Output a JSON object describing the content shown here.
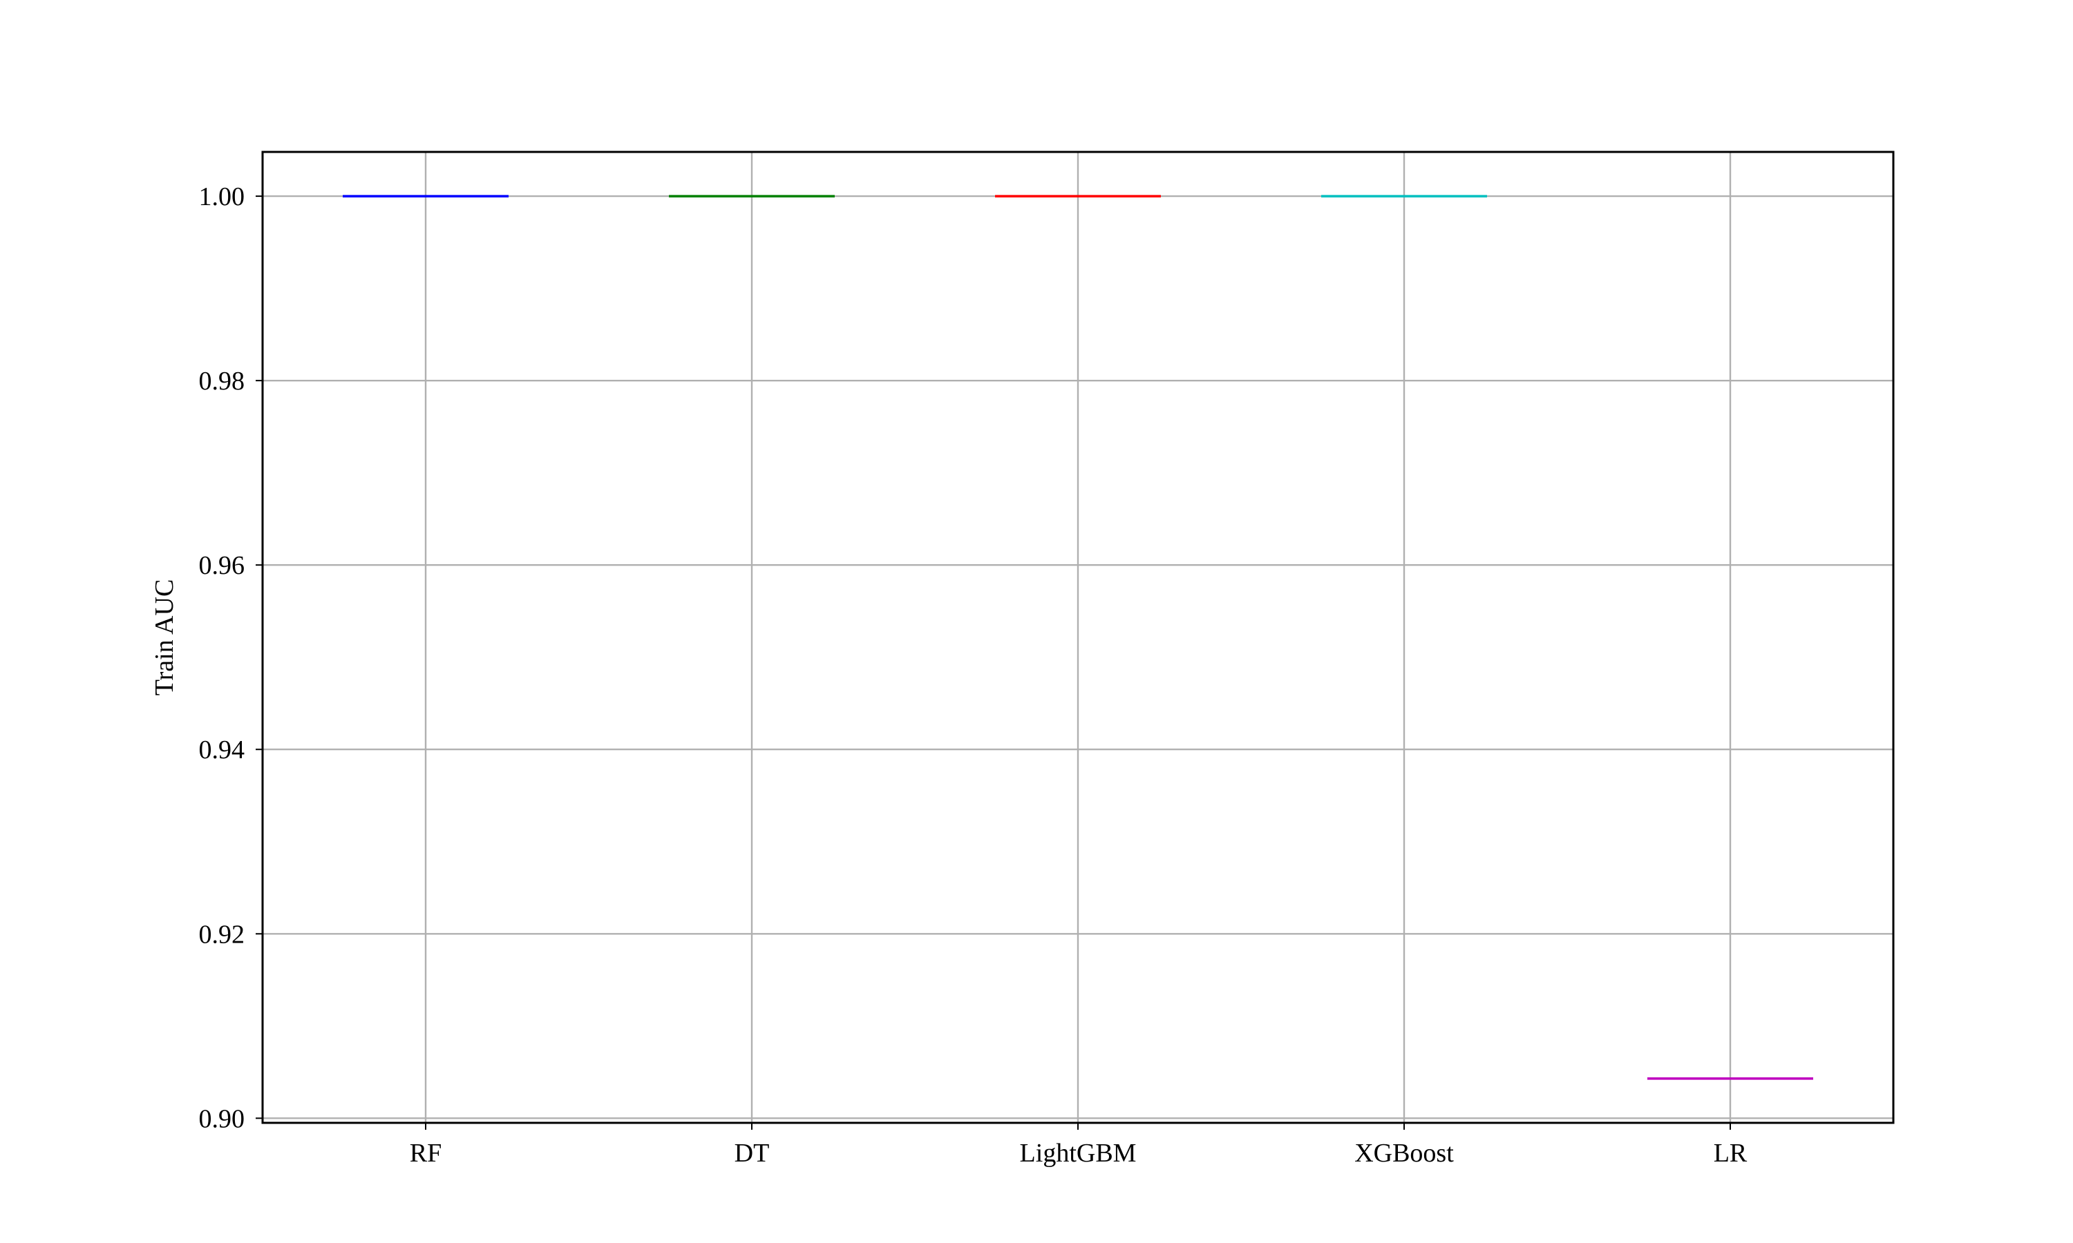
{
  "chart_data": {
    "type": "box",
    "categories": [
      "RF",
      "DT",
      "LightGBM",
      "XGBoost",
      "LR"
    ],
    "series": [
      {
        "values": [
          1.0,
          1.0,
          1.0,
          1.0,
          0.9043
        ]
      }
    ],
    "colors": [
      "#0000ff",
      "#008000",
      "#ff0000",
      "#00bfbf",
      "#bf00bf"
    ],
    "title": "",
    "xlabel": "",
    "ylabel": "Train AUC",
    "ylim": [
      0.8995,
      1.0048
    ],
    "yticks": [
      0.9,
      0.92,
      0.94,
      0.96,
      0.98,
      1.0
    ],
    "ytick_labels": [
      "0.90",
      "0.92",
      "0.94",
      "0.96",
      "0.98",
      "1.00"
    ],
    "grid": true
  }
}
